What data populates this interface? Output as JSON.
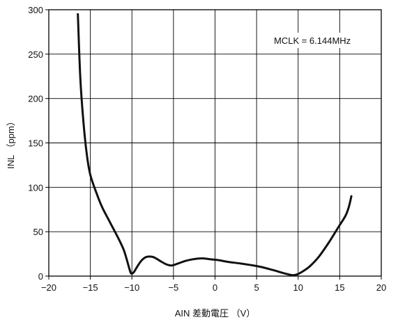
{
  "chart_data": {
    "type": "line",
    "xlabel": "AIN 差動電圧 （V）",
    "ylabel": "INL （ppm）",
    "xlim": [
      -20,
      20
    ],
    "ylim": [
      0,
      300
    ],
    "x_ticks": [
      -20,
      -15,
      -10,
      -5,
      0,
      5,
      10,
      15,
      20
    ],
    "y_ticks": [
      0,
      50,
      100,
      150,
      200,
      250,
      300
    ],
    "x_tick_labels": [
      "−20",
      "−15",
      "−10",
      "−5",
      "0",
      "5",
      "10",
      "15",
      "20"
    ],
    "y_tick_labels": [
      "0",
      "50",
      "100",
      "150",
      "200",
      "250",
      "300"
    ],
    "grid": true,
    "annotation": "MCLK = 6.144MHz",
    "series": [
      {
        "x": [
          -16.5,
          -16.2,
          -15.8,
          -15.4,
          -15.0,
          -14.4,
          -13.6,
          -12.6,
          -11.6,
          -11.0,
          -10.6,
          -10.3,
          -10.1,
          -9.8,
          -9.4,
          -8.9,
          -8.4,
          -7.9,
          -7.3,
          -6.6,
          -5.8,
          -5.2,
          -4.5,
          -3.6,
          -2.6,
          -1.6,
          -0.6,
          0.4,
          1.6,
          3.2,
          5.2,
          6.9,
          8.0,
          8.8,
          9.4,
          9.9,
          10.5,
          11.4,
          12.5,
          13.7,
          14.9,
          15.7,
          16.1,
          16.4
        ],
        "values": [
          295,
          222,
          170,
          135,
          114,
          97,
          78,
          60,
          42,
          30,
          18,
          8,
          3,
          4,
          10,
          17,
          21,
          22,
          21,
          17,
          13,
          12,
          14,
          17,
          19,
          20,
          19,
          18,
          16,
          14,
          11,
          7,
          4,
          2,
          1,
          2,
          5,
          11,
          22,
          38,
          56,
          68,
          78,
          90
        ]
      }
    ]
  }
}
